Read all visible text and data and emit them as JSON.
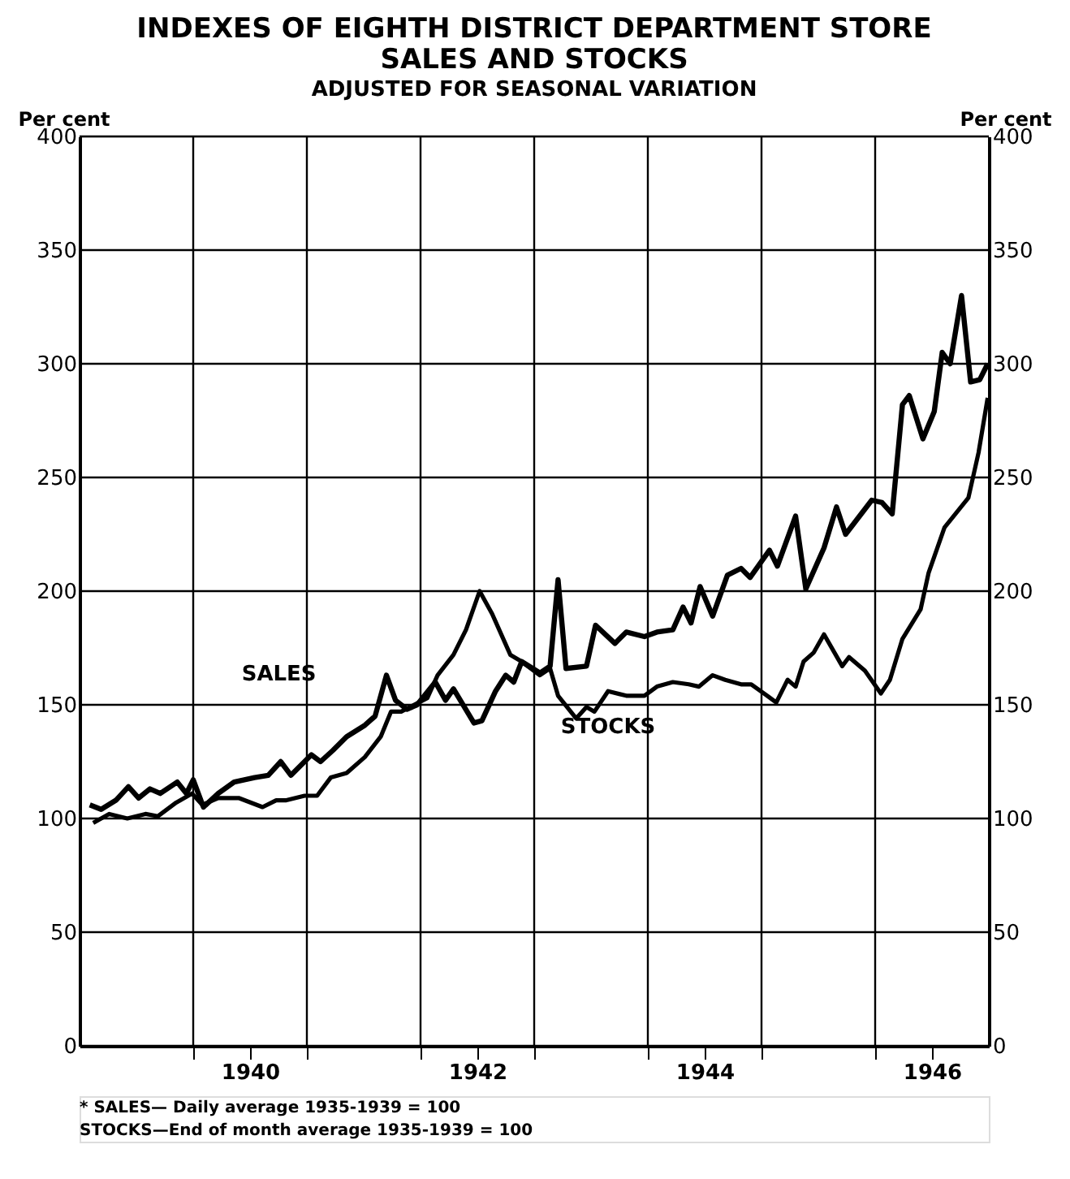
{
  "chart_data": {
    "type": "line",
    "title": "INDEXES OF EIGHTH DISTRICT DEPARTMENT STORE\nSALES AND STOCKS",
    "subtitle": "ADJUSTED FOR SEASONAL VARIATION",
    "ylabel": "Per cent",
    "y2label": "Per cent",
    "xlim": [
      1938.5,
      1946.5
    ],
    "xticks": [
      {
        "value": 1939.5,
        "label": null
      },
      1940,
      {
        "value": 1940.5,
        "label": null
      },
      {
        "value": 1941.5,
        "label": null
      },
      1942,
      {
        "value": 1942.5,
        "label": null
      },
      {
        "value": 1943.5,
        "label": null
      },
      1944,
      {
        "value": 1944.5,
        "label": null
      },
      {
        "value": 1945.5,
        "label": null
      },
      1946
    ],
    "ylim": [
      0,
      400
    ],
    "yticks": [
      0,
      50,
      100,
      150,
      200,
      250,
      300,
      350,
      400
    ],
    "y2lim": [
      0,
      400
    ],
    "y2ticks": [
      0,
      50,
      100,
      150,
      200,
      250,
      300,
      350,
      400
    ],
    "grid": true,
    "marker": "none",
    "line_style": "solid",
    "series": [
      {
        "name": "SALES",
        "color": "#000000",
        "x": [
          1938.59,
          1938.69,
          1938.82,
          1938.93,
          1939.02,
          1939.12,
          1939.21,
          1939.36,
          1939.44,
          1939.5,
          1939.59,
          1939.72,
          1939.86,
          1940.04,
          1940.16,
          1940.27,
          1940.36,
          1940.54,
          1940.62,
          1940.73,
          1940.85,
          1941.01,
          1941.1,
          1941.2,
          1941.28,
          1941.38,
          1941.47,
          1941.63,
          1941.72,
          1941.79,
          1941.97,
          1942.04,
          1942.16,
          1942.25,
          1942.32,
          1942.39,
          1942.55,
          1942.64,
          1942.71,
          1942.78,
          1942.96,
          1943.04,
          1943.21,
          1943.31,
          1943.47,
          1943.58,
          1943.72,
          1943.81,
          1943.88,
          1943.96,
          1944.07,
          1944.2,
          1944.32,
          1944.4,
          1944.57,
          1944.64,
          1944.8,
          1944.89,
          1945.05,
          1945.16,
          1945.24,
          1945.47,
          1945.56,
          1945.65,
          1945.74,
          1945.8,
          1945.92,
          1946.02,
          1946.09,
          1946.16,
          1946.26,
          1946.34,
          1946.42,
          1946.49
        ],
        "values": [
          106,
          104,
          108,
          114,
          109,
          113,
          111,
          116,
          111,
          117,
          105,
          111,
          116,
          118,
          119,
          125,
          119,
          128,
          125,
          130,
          136,
          141,
          145,
          163,
          152,
          148,
          150,
          160,
          152,
          157,
          142,
          143,
          156,
          163,
          160,
          169,
          164,
          167,
          205,
          166,
          167,
          185,
          177,
          182,
          180,
          182,
          183,
          193,
          186,
          202,
          189,
          207,
          210,
          206,
          218,
          211,
          233,
          201,
          219,
          237,
          225,
          240,
          239,
          234,
          282,
          286,
          267,
          279,
          305,
          300,
          330,
          292,
          293,
          300
        ]
      },
      {
        "name": "STOCKS",
        "color": "#000000",
        "x": [
          1938.62,
          1938.76,
          1938.92,
          1939.08,
          1939.19,
          1939.35,
          1939.49,
          1939.58,
          1939.72,
          1939.9,
          1940.11,
          1940.23,
          1940.32,
          1940.48,
          1940.59,
          1940.71,
          1940.85,
          1941.01,
          1941.15,
          1941.24,
          1941.33,
          1941.56,
          1941.65,
          1941.79,
          1941.9,
          1942.02,
          1942.13,
          1942.29,
          1942.39,
          1942.55,
          1942.64,
          1942.71,
          1942.87,
          1942.96,
          1943.03,
          1943.15,
          1943.31,
          1943.47,
          1943.58,
          1943.72,
          1943.86,
          1943.95,
          1944.07,
          1944.18,
          1944.32,
          1944.41,
          1944.55,
          1944.63,
          1944.73,
          1944.8,
          1944.87,
          1944.96,
          1945.05,
          1945.21,
          1945.27,
          1945.41,
          1945.55,
          1945.63,
          1945.74,
          1945.9,
          1945.97,
          1946.11,
          1946.32,
          1946.41,
          1946.49
        ],
        "values": [
          98,
          102,
          100,
          102,
          101,
          107,
          111,
          106,
          109,
          109,
          105,
          108,
          108,
          110,
          110,
          118,
          120,
          127,
          136,
          147,
          147,
          153,
          163,
          172,
          183,
          200,
          190,
          172,
          169,
          163,
          166,
          154,
          144,
          149,
          147,
          156,
          154,
          154,
          158,
          160,
          159,
          158,
          163,
          161,
          159,
          159,
          154,
          151,
          161,
          158,
          169,
          173,
          181,
          167,
          171,
          165,
          155,
          161,
          179,
          192,
          208,
          228,
          241,
          261,
          285
        ]
      }
    ],
    "annotations": [
      "* SALES— Daily average 1935-1939 = 100",
      "STOCKS—End of month average 1935-1939 = 100"
    ]
  }
}
